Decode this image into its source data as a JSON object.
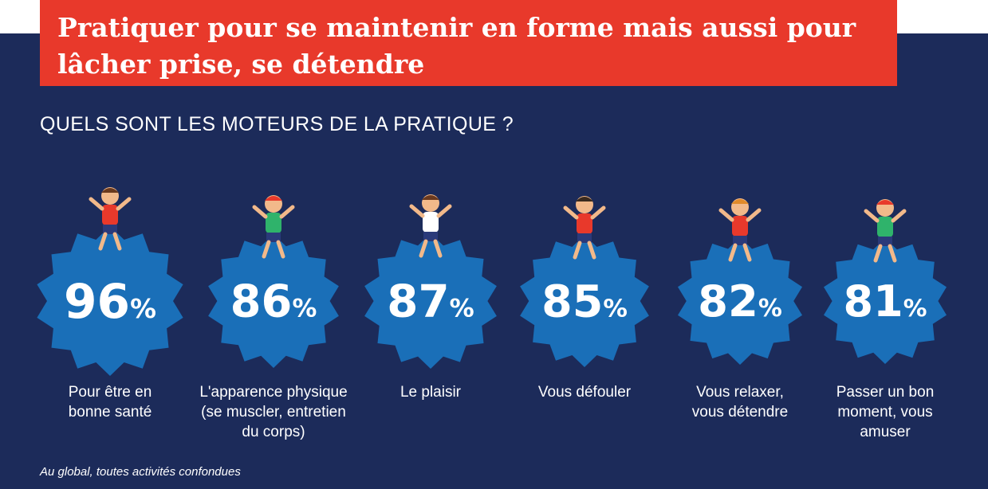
{
  "banner": {
    "line1": "Pratiquer pour se maintenir en forme mais aussi pour",
    "line2": "lâcher prise, se détendre"
  },
  "subtitle": "QUELS SONT LES MOTEURS DE LA PRATIQUE ?",
  "footnote": "Au global, toutes activités confondues",
  "colors": {
    "background": "#1c2b5a",
    "banner": "#e8392b",
    "badge": "#1a6fb8",
    "text": "#ffffff"
  },
  "chart_data": {
    "type": "bar",
    "unit": "%",
    "categories": [
      "Pour être en bonne santé",
      "L'apparence physique (se muscler, entretien du corps)",
      "Le plaisir",
      "Vous défouler",
      "Vous relaxer, vous détendre",
      "Passer un bon moment, vous amuser"
    ],
    "values": [
      96,
      86,
      87,
      85,
      82,
      81
    ],
    "label_lines": [
      [
        "Pour être en",
        "bonne santé"
      ],
      [
        "L'apparence physique",
        "(se muscler, entretien",
        "du corps)"
      ],
      [
        "Le plaisir"
      ],
      [
        "Vous défouler"
      ],
      [
        "Vous relaxer,",
        "vous détendre"
      ],
      [
        "Passer un bon",
        "moment, vous",
        "amuser"
      ]
    ],
    "icons": [
      "dumbbell-athlete-icon",
      "treadmill-runner-icon",
      "dancing-couple-icon",
      "boxer-icon",
      "breakdancer-icon",
      "exercising-girl-icon"
    ]
  }
}
